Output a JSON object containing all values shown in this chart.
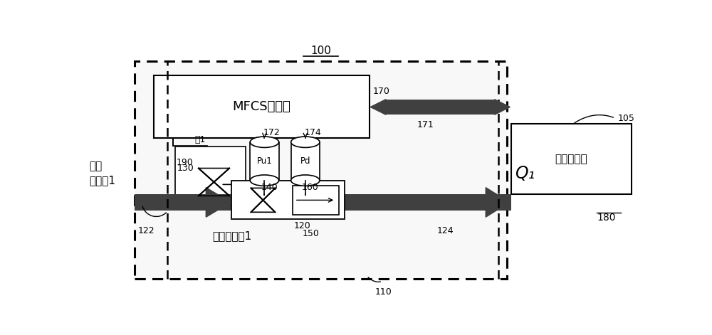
{
  "fig_width": 10.0,
  "fig_height": 4.71,
  "bg_color": "#ffffff",
  "label_100": "100",
  "label_105": "105",
  "label_110": "110",
  "label_120": "120",
  "label_122": "122",
  "label_124": "124",
  "label_130": "130",
  "label_140": "140",
  "label_150": "150",
  "label_160": "160",
  "label_170": "170",
  "label_171": "171",
  "label_172": "172",
  "label_174": "174",
  "label_180": "180",
  "label_190": "190",
  "text_mfcs": "MFCS控制器",
  "text_host": "主机控制器",
  "text_valve": "阀1",
  "text_flow_limiter": "流量限制器1",
  "text_gas_source": "来自\n气体源1",
  "text_Pu1": "Pu1",
  "text_Pd": "Pd",
  "text_Q1": "Q₁",
  "thick_color": "#404040",
  "black": "#000000",
  "white": "#ffffff",
  "dash_pattern": [
    5,
    3
  ]
}
